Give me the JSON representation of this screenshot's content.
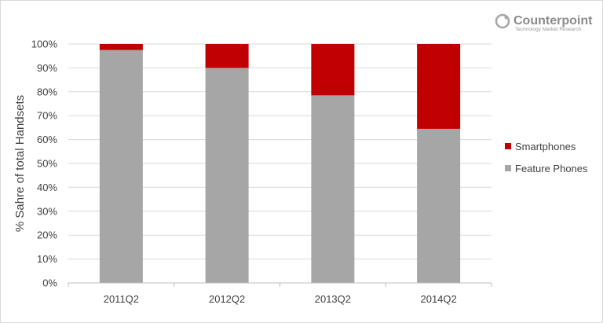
{
  "logo": {
    "name": "Counterpoint",
    "tagline": "Technology Market Research"
  },
  "chart_data": {
    "type": "bar",
    "stacked": true,
    "percent": true,
    "title": "",
    "xlabel": "",
    "ylabel": "% Sahre of total Handsets",
    "categories": [
      "2011Q2",
      "2012Q2",
      "2013Q2",
      "2014Q2"
    ],
    "ylim": [
      0,
      100
    ],
    "yticks": [
      0,
      10,
      20,
      30,
      40,
      50,
      60,
      70,
      80,
      90,
      100
    ],
    "ytick_labels": [
      "0%",
      "10%",
      "20%",
      "30%",
      "40%",
      "50%",
      "60%",
      "70%",
      "80%",
      "90%",
      "100%"
    ],
    "grid": true,
    "legend_position": "right",
    "series": [
      {
        "name": "Feature Phones",
        "color": "#a6a6a6",
        "values": [
          97.5,
          90,
          78.5,
          64.5
        ]
      },
      {
        "name": "Smartphones",
        "color": "#c00000",
        "values": [
          2.5,
          10,
          21.5,
          35.5
        ]
      }
    ]
  }
}
